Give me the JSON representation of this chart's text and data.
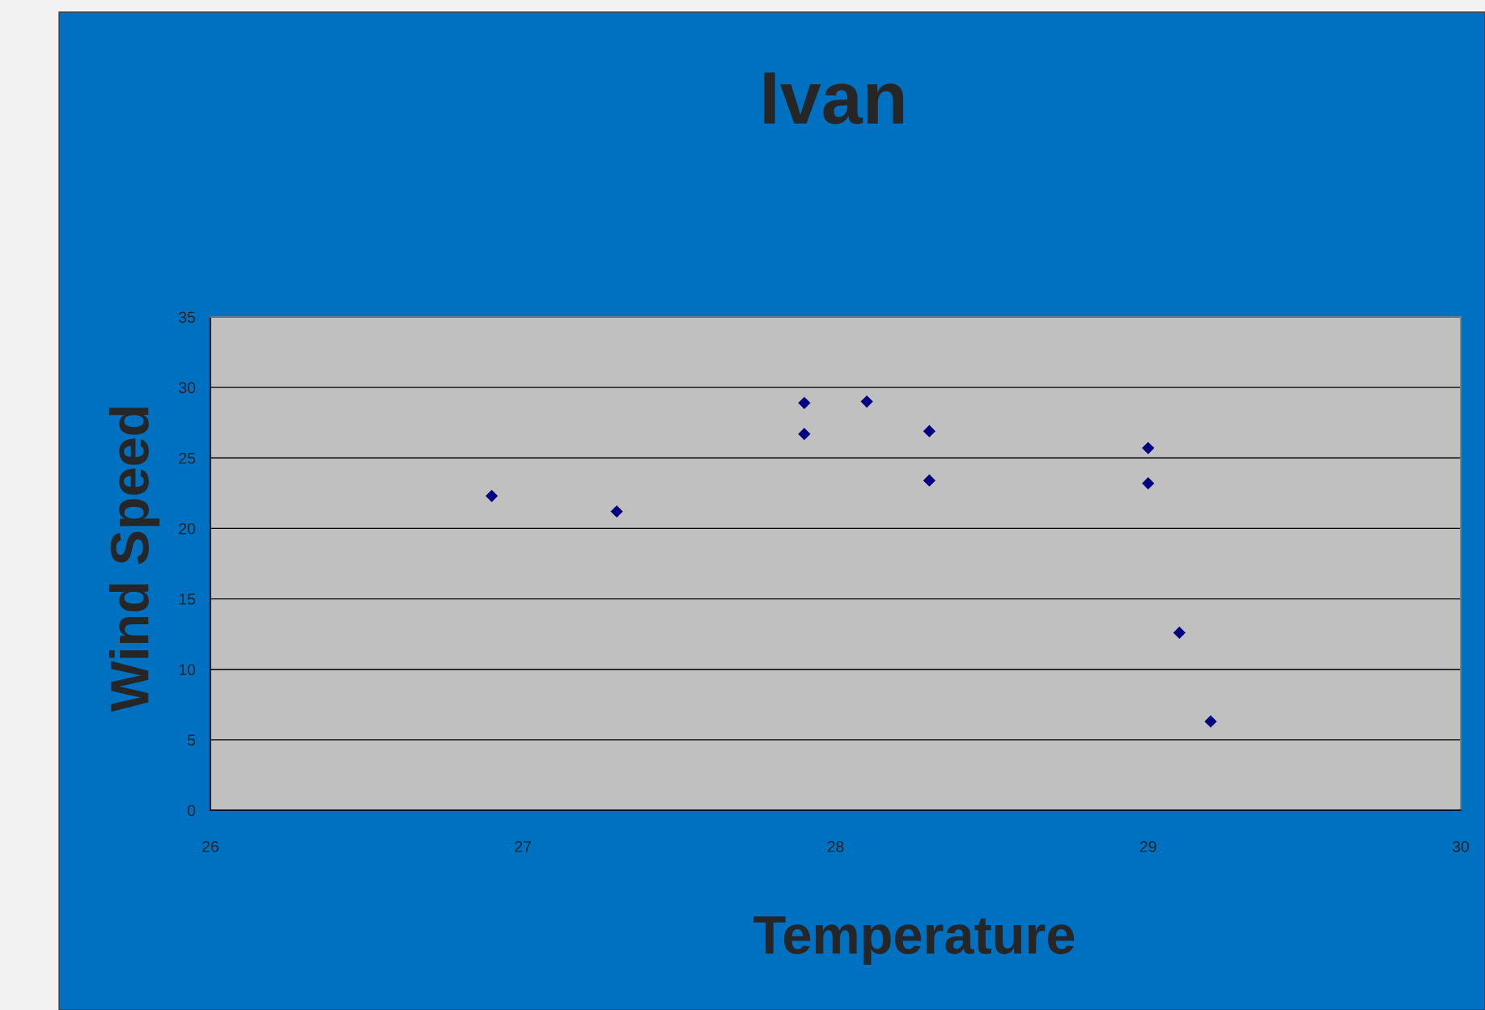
{
  "chart_data": {
    "type": "scatter",
    "title": "Ivan",
    "xlabel": "Temperature",
    "ylabel": "Wind Speed",
    "x": [
      26.9,
      27.3,
      27.9,
      27.9,
      28.1,
      28.3,
      28.3,
      29.0,
      29.0,
      29.1,
      29.2
    ],
    "series": [
      {
        "color": "#000080",
        "values": [
          22.3,
          21.2,
          28.9,
          26.7,
          29.0,
          26.9,
          23.4,
          25.7,
          23.2,
          12.6,
          6.3
        ]
      }
    ],
    "xlim": [
      26,
      30
    ],
    "xticks": [
      26,
      27,
      28,
      29,
      30
    ],
    "ylim": [
      0,
      35
    ],
    "yticks": [
      0,
      5,
      10,
      15,
      20,
      25,
      30,
      35
    ],
    "grid": "y",
    "marker": "diamond",
    "legend": false
  }
}
